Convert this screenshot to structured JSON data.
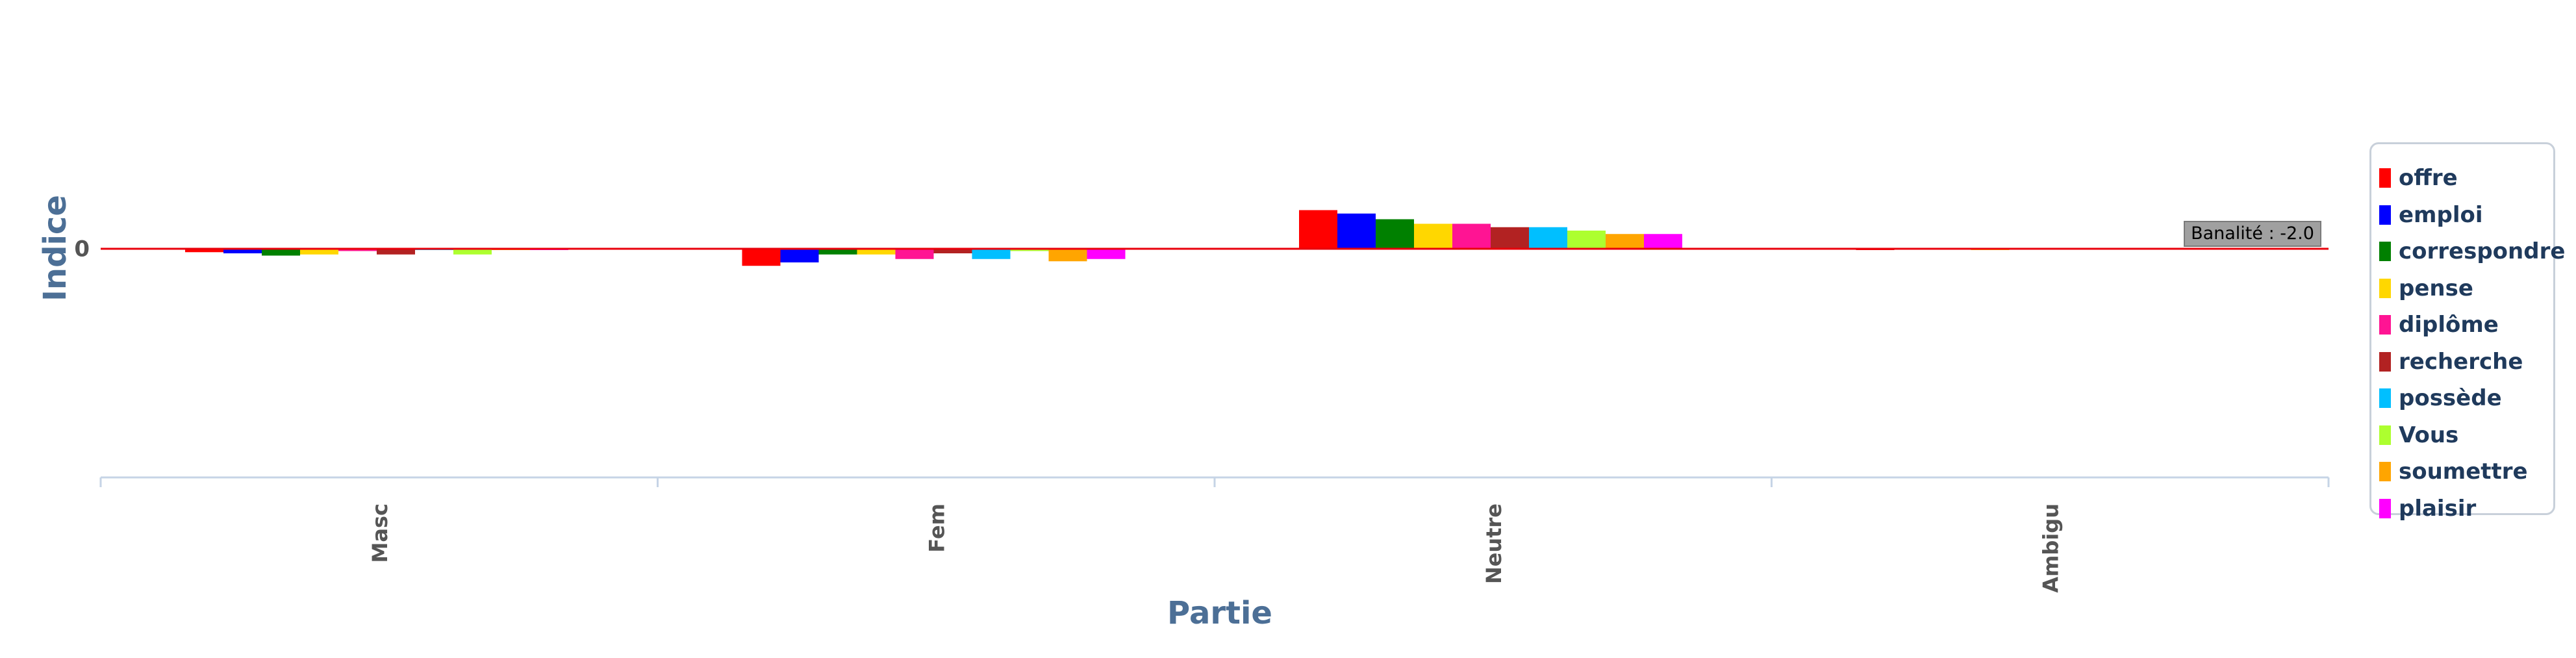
{
  "chart_data": {
    "type": "bar",
    "ylabel": "Indice",
    "xlabel": "Partie",
    "categories": [
      "Masc",
      "Fem",
      "Neutre",
      "Ambigu"
    ],
    "zero_tick": "0",
    "ylim": [
      -6,
      4
    ],
    "series": [
      {
        "name": "offre",
        "color": "#ff0000",
        "values": [
          -0.15,
          -0.75,
          1.7,
          -0.05
        ]
      },
      {
        "name": "emploi",
        "color": "#0000ff",
        "values": [
          -0.2,
          -0.6,
          1.55,
          0.0
        ]
      },
      {
        "name": "correspondre",
        "color": "#008000",
        "values": [
          -0.3,
          -0.25,
          1.3,
          0.0
        ]
      },
      {
        "name": "pense",
        "color": "#ffd700",
        "values": [
          -0.25,
          -0.25,
          1.1,
          -0.03
        ]
      },
      {
        "name": "diplôme",
        "color": "#ff1493",
        "values": [
          -0.1,
          -0.45,
          1.1,
          0.0
        ]
      },
      {
        "name": "recherche",
        "color": "#b22222",
        "values": [
          -0.25,
          -0.2,
          0.95,
          0.0
        ]
      },
      {
        "name": "possède",
        "color": "#00bfff",
        "values": [
          -0.05,
          -0.45,
          0.95,
          0.0
        ]
      },
      {
        "name": "Vous",
        "color": "#adff2f",
        "values": [
          -0.25,
          -0.1,
          0.8,
          0.0
        ]
      },
      {
        "name": "soumettre",
        "color": "#ffa500",
        "values": [
          -0.03,
          -0.55,
          0.65,
          0.0
        ]
      },
      {
        "name": "plaisir",
        "color": "#ff00ff",
        "values": [
          -0.03,
          -0.45,
          0.65,
          0.0
        ]
      }
    ],
    "annotation": "Banalité : -2.0",
    "legend_position": "right",
    "zero_line_color": "#e8000b",
    "axis_title_color": "#4c6f96",
    "tick_color": "#555555"
  }
}
